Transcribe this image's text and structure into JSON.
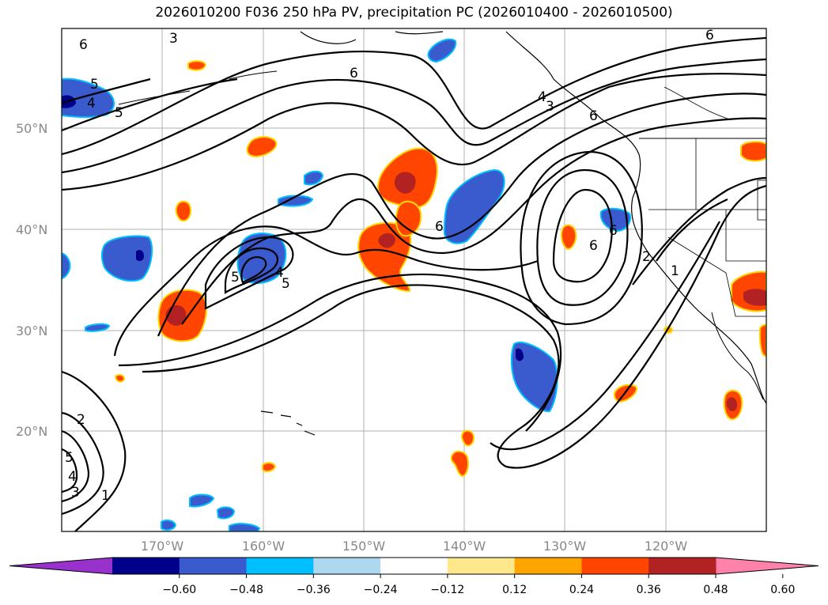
{
  "title": "2026010200 F036 250 hPa PV, precipitation PC (2026010400 - 2026010500)",
  "lat_labels": [
    "50°N",
    "40°N",
    "30°N",
    "20°N"
  ],
  "lon_labels": [
    "170°W",
    "160°W",
    "150°W",
    "140°W",
    "130°W",
    "120°W"
  ],
  "colorbar": {
    "ticks": [
      "−0.60",
      "−0.48",
      "−0.36",
      "−0.24",
      "−0.12",
      "0.12",
      "0.24",
      "0.36",
      "0.48",
      "0.60"
    ],
    "colors": [
      "#9932cc",
      "#00008b",
      "#3a5bcd",
      "#00bfff",
      "#add8f0",
      "#ffffff",
      "#ffe88c",
      "#ffa500",
      "#ff4500",
      "#b22222",
      "#ff82ab"
    ]
  },
  "contour_labels": [
    "6",
    "3",
    "5",
    "4",
    "5",
    "6",
    "5",
    "4",
    "5",
    "6",
    "4",
    "3",
    "6",
    "6",
    "6",
    "1",
    "2",
    "6",
    "2",
    "5",
    "4",
    "3",
    "1"
  ],
  "colors": {
    "pv_contour": "#000000",
    "grid": "#b0b0b0",
    "coast": "#000000"
  }
}
